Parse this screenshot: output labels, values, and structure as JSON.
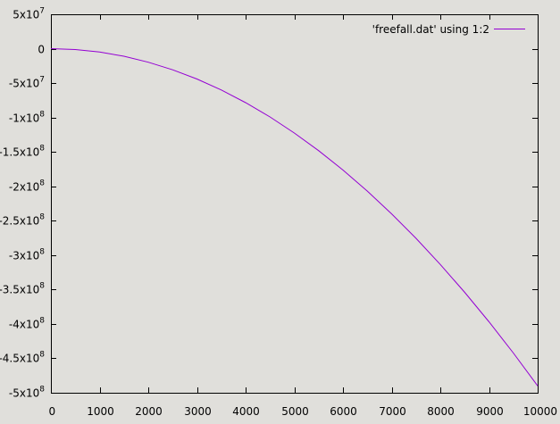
{
  "chart_data": {
    "type": "line",
    "title": "",
    "xlabel": "",
    "ylabel": "",
    "xlim": [
      0,
      10000
    ],
    "ylim": [
      -500000000,
      50000000
    ],
    "x_ticks": [
      {
        "value": 0,
        "label": "0"
      },
      {
        "value": 1000,
        "label": "1000"
      },
      {
        "value": 2000,
        "label": "2000"
      },
      {
        "value": 3000,
        "label": "3000"
      },
      {
        "value": 4000,
        "label": "4000"
      },
      {
        "value": 5000,
        "label": "5000"
      },
      {
        "value": 6000,
        "label": "6000"
      },
      {
        "value": 7000,
        "label": "7000"
      },
      {
        "value": 8000,
        "label": "8000"
      },
      {
        "value": 9000,
        "label": "9000"
      },
      {
        "value": 10000,
        "label": "10000"
      }
    ],
    "y_ticks": [
      {
        "value": 50000000,
        "mantissa": "5x10",
        "exp": "7"
      },
      {
        "value": 0,
        "mantissa": "0",
        "exp": ""
      },
      {
        "value": -50000000,
        "mantissa": "-5x10",
        "exp": "7"
      },
      {
        "value": -100000000,
        "mantissa": "-1x10",
        "exp": "8"
      },
      {
        "value": -150000000,
        "mantissa": "-1.5x10",
        "exp": "8"
      },
      {
        "value": -200000000,
        "mantissa": "-2x10",
        "exp": "8"
      },
      {
        "value": -250000000,
        "mantissa": "-2.5x10",
        "exp": "8"
      },
      {
        "value": -300000000,
        "mantissa": "-3x10",
        "exp": "8"
      },
      {
        "value": -350000000,
        "mantissa": "-3.5x10",
        "exp": "8"
      },
      {
        "value": -400000000,
        "mantissa": "-4x10",
        "exp": "8"
      },
      {
        "value": -450000000,
        "mantissa": "-4.5x10",
        "exp": "8"
      },
      {
        "value": -500000000,
        "mantissa": "-5x10",
        "exp": "8"
      }
    ],
    "grid": false,
    "legend_position": "top-right",
    "series": [
      {
        "name": "'freefall.dat' using 1:2",
        "color": "#9400d3",
        "x": [
          0,
          500,
          1000,
          1500,
          2000,
          2500,
          3000,
          3500,
          4000,
          4500,
          5000,
          5500,
          6000,
          6500,
          7000,
          7500,
          8000,
          8500,
          9000,
          9500,
          10000
        ],
        "y": [
          0,
          -1225000,
          -4900000,
          -11025000,
          -19600000,
          -30625000,
          -44100000,
          -60025000,
          -78400000,
          -99225000,
          -122500000,
          -148225000,
          -176400000,
          -207025000,
          -240100000,
          -275625000,
          -313600000,
          -354025000,
          -396900000,
          -442225000,
          -490000000
        ]
      }
    ]
  }
}
